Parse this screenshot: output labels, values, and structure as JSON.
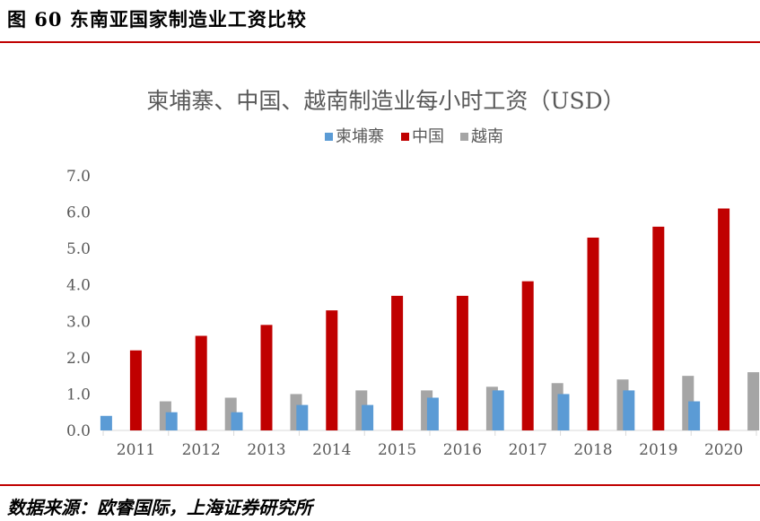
{
  "figure": {
    "title": "图 60 东南亚国家制造业工资比较",
    "source": "数据来源：欧睿国际，上海证券研究所"
  },
  "chart_data": {
    "type": "bar",
    "title": "柬埔寨、中国、越南制造业每小时工资（USD）",
    "xlabel": "",
    "ylabel": "",
    "categories": [
      "2011",
      "2012",
      "2013",
      "2014",
      "2015",
      "2016",
      "2017",
      "2018",
      "2019",
      "2020"
    ],
    "series": [
      {
        "name": "柬埔寨",
        "color": "#5b9bd5",
        "values": [
          0.4,
          0.5,
          0.5,
          0.7,
          0.7,
          0.9,
          1.1,
          1.0,
          1.1,
          0.8
        ]
      },
      {
        "name": "中国",
        "color": "#c00000",
        "values": [
          2.2,
          2.6,
          2.9,
          3.3,
          3.7,
          3.7,
          4.1,
          5.3,
          5.6,
          6.1
        ]
      },
      {
        "name": "越南",
        "color": "#a5a5a5",
        "values": [
          0.8,
          0.9,
          1.0,
          1.1,
          1.1,
          1.2,
          1.3,
          1.4,
          1.5,
          1.6
        ]
      }
    ],
    "ylim": [
      0,
      7
    ],
    "yticks": [
      "0.0",
      "1.0",
      "2.0",
      "3.0",
      "4.0",
      "5.0",
      "6.0",
      "7.0"
    ],
    "grid": false,
    "legend": "top-center"
  }
}
